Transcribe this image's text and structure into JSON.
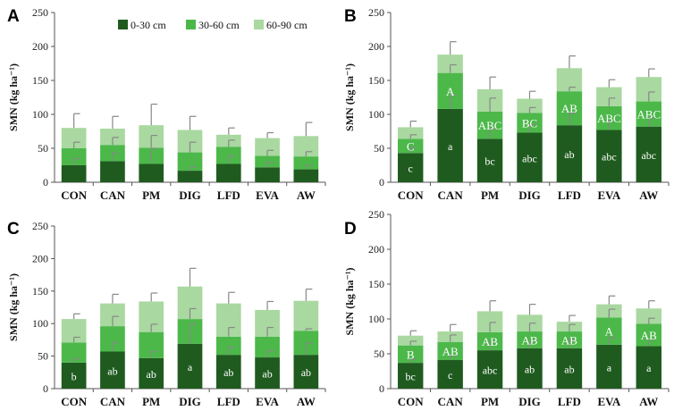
{
  "colors": {
    "layer0": "#1f5b1f",
    "layer1": "#4cb84a",
    "layer2": "#a9d8a0",
    "error": "#888888",
    "axis": "#555555",
    "label": "#ffffff"
  },
  "legend": {
    "items": [
      "0-30 cm",
      "30-60 cm",
      "60-90 cm"
    ]
  },
  "chart_data": [
    {
      "panel": "A",
      "type": "bar",
      "stacked": true,
      "ylabel": "SMN (kg ha⁻¹)",
      "ylim": [
        0,
        250
      ],
      "yticks": [
        0,
        50,
        100,
        150,
        200,
        250
      ],
      "categories": [
        "CON",
        "CAN",
        "PM",
        "DIG",
        "LFD",
        "EVA",
        "AW"
      ],
      "series": [
        {
          "name": "0-30 cm",
          "values": [
            25,
            31,
            27,
            17,
            27,
            22,
            19
          ],
          "errors": [
            10,
            12,
            23,
            5,
            12,
            7,
            6
          ]
        },
        {
          "name": "30-60 cm",
          "values": [
            25,
            24,
            24,
            27,
            25,
            17,
            19
          ],
          "errors": [
            9,
            11,
            18,
            15,
            10,
            8,
            7
          ]
        },
        {
          "name": "60-90 cm",
          "values": [
            30,
            24,
            33,
            33,
            18,
            26,
            30
          ],
          "errors": [
            21,
            18,
            31,
            20,
            10,
            8,
            20
          ]
        }
      ],
      "labels": []
    },
    {
      "panel": "B",
      "type": "bar",
      "stacked": true,
      "ylabel": "SMN (kg ha⁻¹)",
      "ylim": [
        0,
        250
      ],
      "yticks": [
        0,
        50,
        100,
        150,
        200,
        250
      ],
      "categories": [
        "CON",
        "CAN",
        "PM",
        "DIG",
        "LFD",
        "EVA",
        "AW"
      ],
      "series": [
        {
          "name": "0-30 cm",
          "values": [
            43,
            108,
            64,
            73,
            84,
            77,
            82
          ],
          "errors": [
            8,
            20,
            15,
            12,
            18,
            14,
            13
          ]
        },
        {
          "name": "30-60 cm",
          "values": [
            21,
            53,
            40,
            29,
            50,
            35,
            37
          ],
          "errors": [
            6,
            12,
            20,
            8,
            6,
            12,
            14
          ]
        },
        {
          "name": "60-90 cm",
          "values": [
            17,
            27,
            33,
            21,
            34,
            28,
            36
          ],
          "errors": [
            9,
            19,
            18,
            11,
            18,
            11,
            12
          ]
        }
      ],
      "labels": [
        {
          "series": 0,
          "texts": [
            "c",
            "a",
            "bc",
            "abc",
            "ab",
            "abc",
            "abc"
          ]
        },
        {
          "series": 1,
          "texts": [
            "C",
            "A",
            "ABC",
            "BC",
            "AB",
            "ABC",
            "ABC"
          ]
        }
      ]
    },
    {
      "panel": "C",
      "type": "bar",
      "stacked": true,
      "ylabel": "SMN (kg ha⁻¹)",
      "ylim": [
        0,
        250
      ],
      "yticks": [
        0,
        50,
        100,
        150,
        200,
        250
      ],
      "categories": [
        "CON",
        "CAN",
        "PM",
        "DIG",
        "LFD",
        "EVA",
        "AW"
      ],
      "series": [
        {
          "name": "0-30 cm",
          "values": [
            40,
            57,
            47,
            69,
            52,
            48,
            52
          ],
          "errors": [
            6,
            14,
            10,
            30,
            12,
            10,
            18
          ]
        },
        {
          "name": "30-60 cm",
          "values": [
            31,
            39,
            40,
            38,
            28,
            32,
            37
          ],
          "errors": [
            8,
            15,
            12,
            16,
            14,
            14,
            3
          ]
        },
        {
          "name": "60-90 cm",
          "values": [
            36,
            35,
            47,
            50,
            51,
            41,
            46
          ],
          "errors": [
            8,
            14,
            13,
            28,
            17,
            13,
            18
          ]
        }
      ],
      "labels": [
        {
          "series": 0,
          "texts": [
            "b",
            "ab",
            "ab",
            "a",
            "ab",
            "ab",
            "ab"
          ]
        }
      ]
    },
    {
      "panel": "D",
      "type": "bar",
      "stacked": true,
      "ylabel": "SMN (kg ha⁻¹)",
      "ylim": [
        0,
        250
      ],
      "yticks": [
        0,
        50,
        100,
        150,
        200,
        250
      ],
      "categories": [
        "CON",
        "CAN",
        "PM",
        "DIG",
        "LFD",
        "EVA",
        "AW"
      ],
      "series": [
        {
          "name": "0-30 cm",
          "values": [
            37,
            41,
            55,
            58,
            58,
            63,
            61
          ],
          "errors": [
            5,
            6,
            12,
            10,
            12,
            10,
            10
          ]
        },
        {
          "name": "30-60 cm",
          "values": [
            25,
            26,
            26,
            24,
            24,
            39,
            32
          ],
          "errors": [
            6,
            10,
            14,
            12,
            10,
            12,
            8
          ]
        },
        {
          "name": "60-90 cm",
          "values": [
            14,
            15,
            30,
            24,
            14,
            19,
            22
          ],
          "errors": [
            7,
            10,
            15,
            15,
            9,
            12,
            11
          ]
        }
      ],
      "labels": [
        {
          "series": 0,
          "texts": [
            "bc",
            "c",
            "abc",
            "ab",
            "ab",
            "a",
            "a"
          ]
        },
        {
          "series": 1,
          "texts": [
            "B",
            "AB",
            "AB",
            "AB",
            "AB",
            "A",
            "AB"
          ]
        }
      ]
    }
  ]
}
